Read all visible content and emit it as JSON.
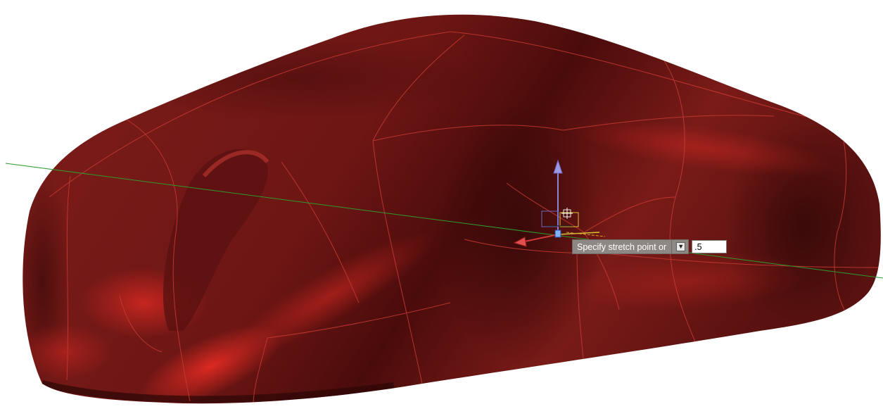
{
  "viewport": {
    "model": "red-car-body-surface",
    "colors": {
      "body": "#7a1c19",
      "body_dark": "#3d0a09",
      "highlight": "#d52a23",
      "isolines": "#c83b34",
      "ucs_green_axis": "#2e9b2e",
      "gizmo_z": "#8a86d8",
      "gizmo_x": "#d23a3a",
      "gizmo_y": "#d8c23a"
    }
  },
  "dynamic_input": {
    "prompt": "Specify stretch point or",
    "options_icon": "down-arrow-icon",
    "value": ".5"
  }
}
